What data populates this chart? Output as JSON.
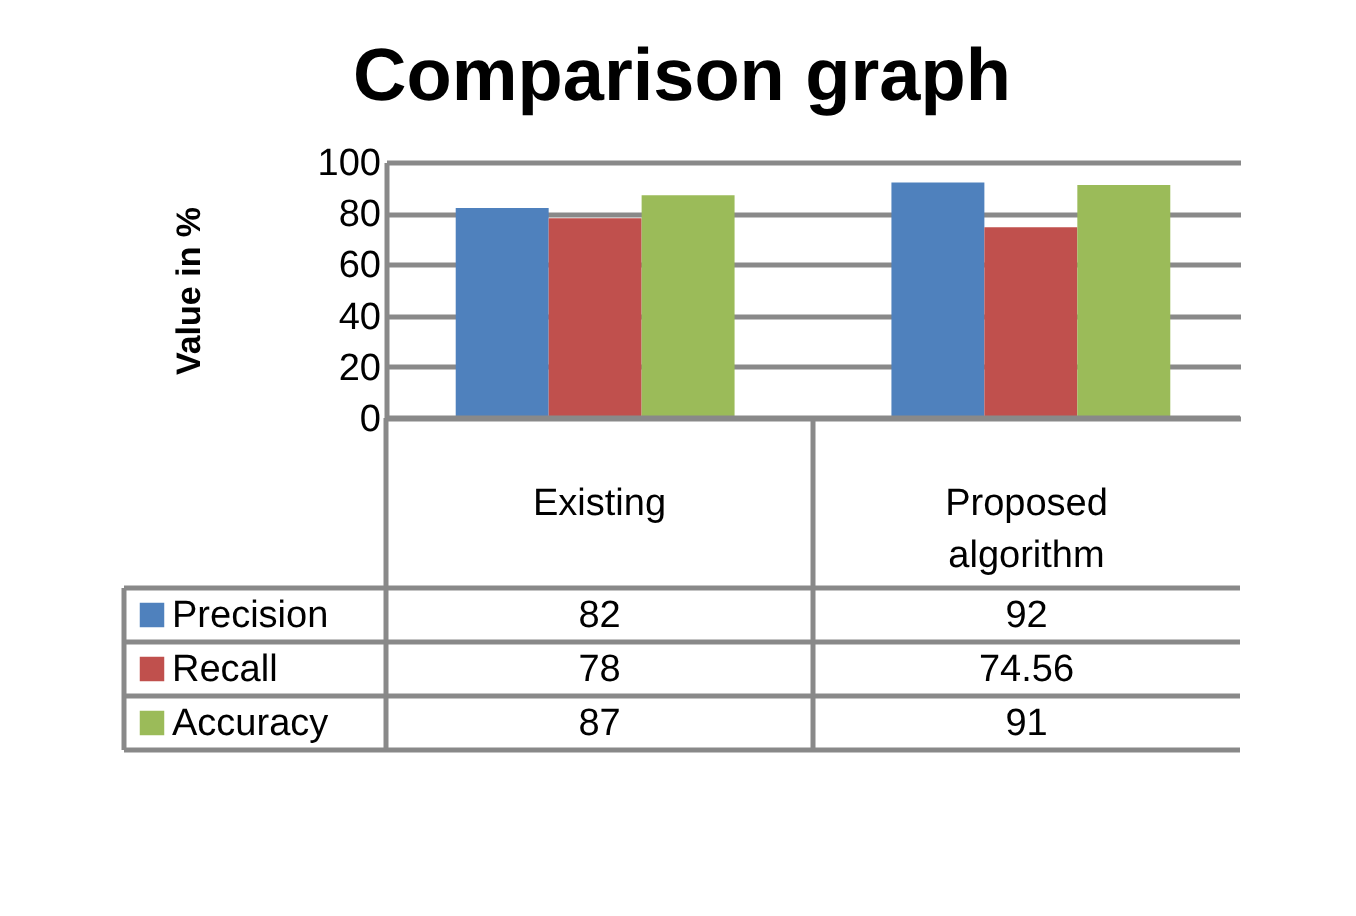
{
  "chart_data": {
    "type": "bar",
    "title": "Comparison graph",
    "ylabel": "Value in %",
    "categories": [
      "Existing",
      "Proposed algorithm"
    ],
    "series": [
      {
        "name": "Precision",
        "color": "#4f81bd",
        "values": [
          82,
          92
        ]
      },
      {
        "name": "Recall",
        "color": "#c0504d",
        "values": [
          78,
          74.56
        ]
      },
      {
        "name": "Accuracy",
        "color": "#9bbb59",
        "values": [
          87,
          91
        ]
      }
    ],
    "ylim": [
      0,
      100
    ],
    "yticks": [
      0,
      20,
      40,
      60,
      80,
      100
    ],
    "grid": "y",
    "data_labels": true,
    "legend": "bottom left"
  }
}
